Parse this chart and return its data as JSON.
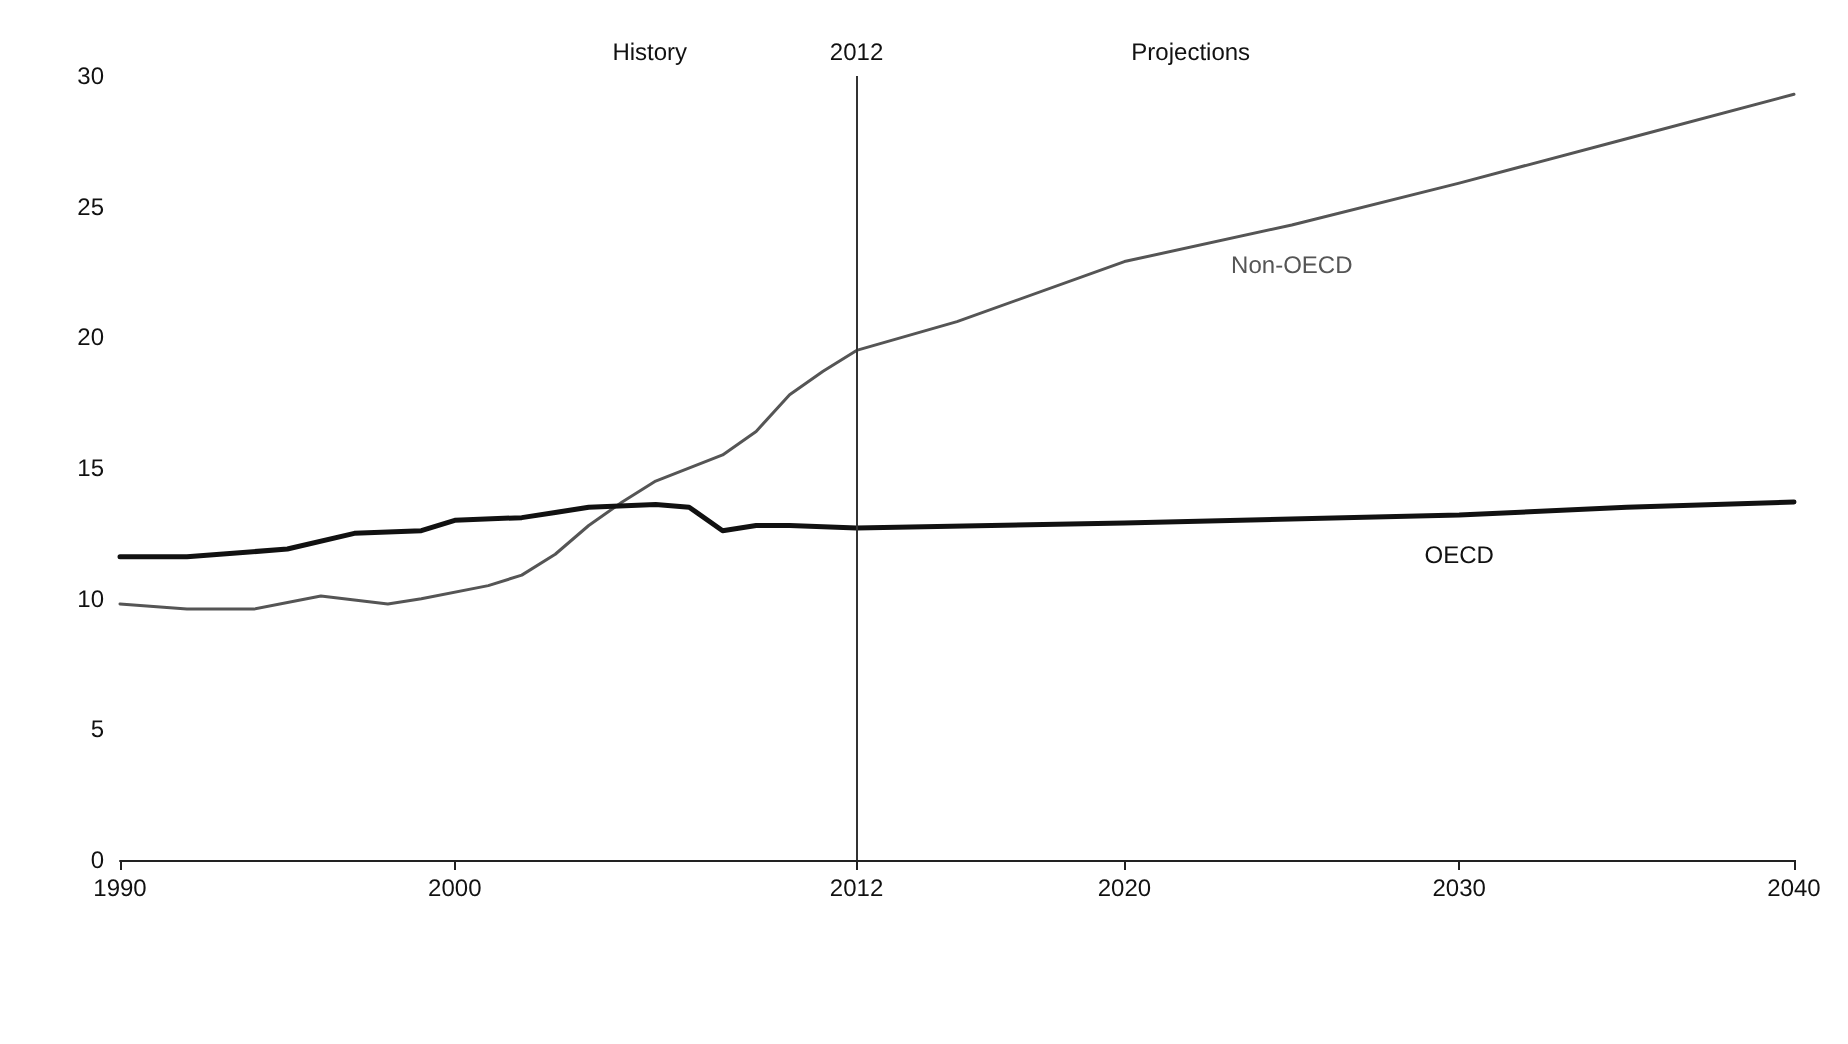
{
  "chart_data": {
    "type": "line",
    "xlim": [
      1990,
      2040
    ],
    "xticks": [
      1990,
      2000,
      2012,
      2020,
      2030,
      2040
    ],
    "ylim": [
      0,
      30
    ],
    "yticks": [
      0,
      5,
      10,
      15,
      20,
      25,
      30
    ],
    "grid": false,
    "legend": false,
    "marker": "none",
    "line_style": "solid",
    "annotations": [
      "History",
      "Projections"
    ],
    "ref_lines": [
      {
        "axis": "x",
        "value": 2012,
        "label": "2012",
        "color": "#333333"
      }
    ],
    "series": [
      {
        "name": "Non-OECD",
        "color": "#555555",
        "x": [
          1990,
          1992,
          1994,
          1996,
          1998,
          1999,
          2001,
          2002,
          2003,
          2004,
          2005,
          2006,
          2008,
          2009,
          2010,
          2011,
          2012,
          2015,
          2020,
          2025,
          2030,
          2035,
          2040
        ],
        "values": [
          9.8,
          9.6,
          9.6,
          10.1,
          9.8,
          10.0,
          10.5,
          10.9,
          11.7,
          12.8,
          13.7,
          14.5,
          15.5,
          16.4,
          17.8,
          18.7,
          19.5,
          20.6,
          22.9,
          24.3,
          25.9,
          27.6,
          29.3
        ]
      },
      {
        "name": "OECD",
        "color": "#111111",
        "x": [
          1990,
          1992,
          1995,
          1997,
          1999,
          2000,
          2002,
          2003,
          2004,
          2006,
          2007,
          2008,
          2009,
          2010,
          2012,
          2020,
          2030,
          2035,
          2040
        ],
        "values": [
          11.6,
          11.6,
          11.9,
          12.5,
          12.6,
          13.0,
          13.1,
          13.3,
          13.5,
          13.6,
          13.5,
          12.6,
          12.8,
          12.8,
          12.7,
          12.9,
          13.2,
          13.5,
          13.7
        ]
      }
    ]
  }
}
